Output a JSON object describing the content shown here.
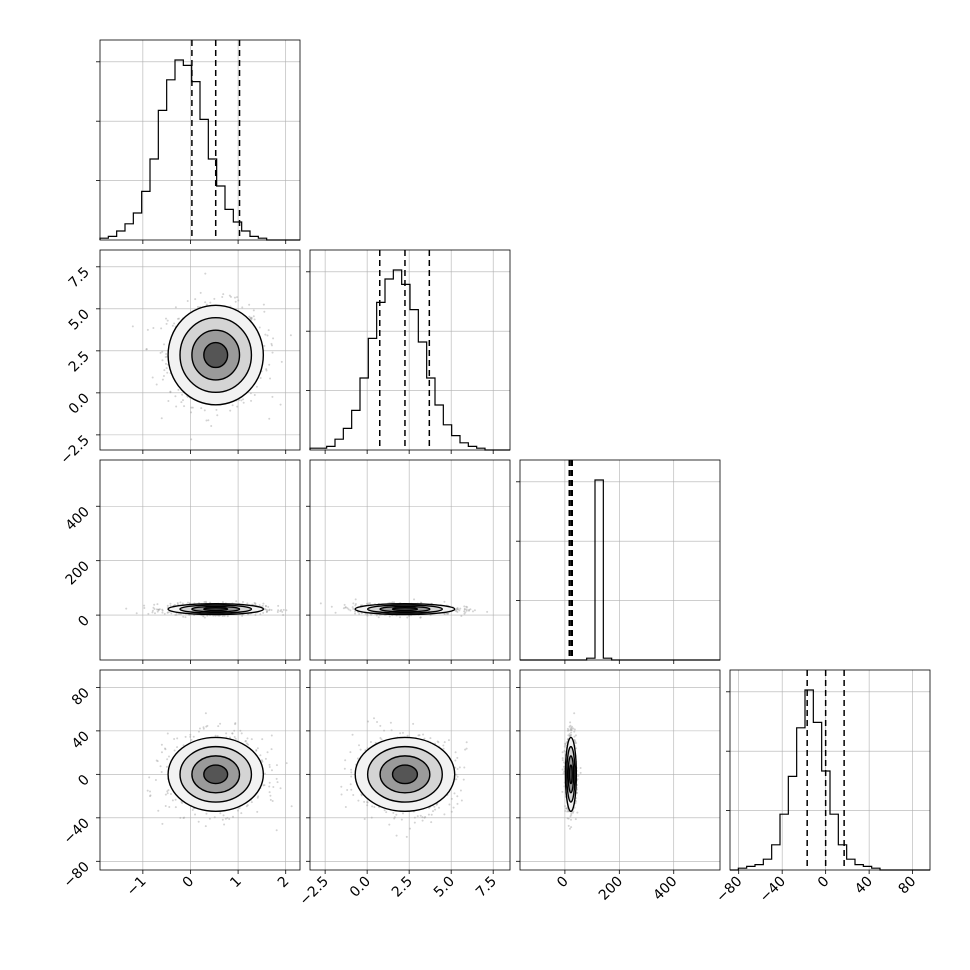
{
  "chart_data": {
    "type": "corner",
    "title": "",
    "parameters": [
      {
        "label": "",
        "range": [
          -1.9,
          2.3
        ],
        "ticks": [
          -1,
          0,
          1,
          2
        ],
        "tick_labels": [
          "−1",
          "0",
          "1",
          "2"
        ],
        "quantiles": [
          0.03,
          0.53,
          1.03
        ]
      },
      {
        "label": "",
        "range": [
          -3.4,
          8.5
        ],
        "ticks": [
          -2.5,
          0.0,
          2.5,
          5.0,
          7.5
        ],
        "tick_labels": [
          "−2.5",
          "0.0",
          "2.5",
          "5.0",
          "7.5"
        ],
        "quantiles": [
          0.75,
          2.25,
          3.7
        ]
      },
      {
        "label": "",
        "range": [
          -165,
          570
        ],
        "ticks": [
          0,
          200,
          400
        ],
        "tick_labels": [
          "0",
          "200",
          "400"
        ],
        "quantiles": [
          16,
          22,
          27
        ]
      },
      {
        "label": "",
        "range": [
          -88,
          96
        ],
        "ticks": [
          -80,
          -40,
          0,
          40,
          80
        ],
        "tick_labels": [
          "−80",
          "−40",
          "0",
          "40",
          "80"
        ],
        "quantiles": [
          -17,
          0,
          17
        ]
      }
    ],
    "histograms": [
      {
        "parameter": 0,
        "bins": 24,
        "counts": [
          0.01,
          0.02,
          0.05,
          0.09,
          0.15,
          0.27,
          0.45,
          0.72,
          0.89,
          1.0,
          0.97,
          0.88,
          0.67,
          0.45,
          0.3,
          0.17,
          0.1,
          0.05,
          0.02,
          0.01,
          0.0,
          0.0,
          0.0,
          0.0
        ]
      },
      {
        "parameter": 1,
        "bins": 24,
        "counts": [
          0.01,
          0.01,
          0.02,
          0.06,
          0.12,
          0.22,
          0.4,
          0.62,
          0.82,
          0.95,
          1.0,
          0.92,
          0.78,
          0.6,
          0.4,
          0.25,
          0.14,
          0.08,
          0.04,
          0.02,
          0.01,
          0.0,
          0.0,
          0.0
        ]
      },
      {
        "parameter": 2,
        "bins": 24,
        "counts": [
          0,
          0,
          0,
          0,
          0,
          0,
          0,
          0,
          0.01,
          1.0,
          0.01,
          0,
          0,
          0,
          0,
          0,
          0,
          0,
          0,
          0,
          0,
          0,
          0,
          0
        ]
      },
      {
        "parameter": 3,
        "bins": 24,
        "counts": [
          0.0,
          0.01,
          0.02,
          0.03,
          0.06,
          0.14,
          0.31,
          0.52,
          0.79,
          1.0,
          0.82,
          0.55,
          0.31,
          0.14,
          0.06,
          0.03,
          0.02,
          0.01,
          0.0,
          0.0,
          0.0,
          0.0,
          0.0,
          0.0
        ]
      }
    ],
    "scatter_panels": [
      {
        "x_param": 0,
        "y_param": 1,
        "mean": [
          0.53,
          2.25
        ],
        "std": [
          0.5,
          1.48
        ]
      },
      {
        "x_param": 0,
        "y_param": 2,
        "mean": [
          0.53,
          22
        ],
        "std": [
          0.5,
          10
        ]
      },
      {
        "x_param": 1,
        "y_param": 2,
        "mean": [
          2.25,
          22
        ],
        "std": [
          1.48,
          10
        ]
      },
      {
        "x_param": 0,
        "y_param": 3,
        "mean": [
          0.53,
          0
        ],
        "std": [
          0.5,
          17
        ]
      },
      {
        "x_param": 1,
        "y_param": 3,
        "mean": [
          2.25,
          0
        ],
        "std": [
          1.48,
          17
        ]
      },
      {
        "x_param": 2,
        "y_param": 3,
        "mean": [
          22,
          0
        ],
        "std": [
          10,
          17
        ]
      }
    ],
    "contour_levels_sigma": [
      0.5,
      1.0,
      1.5,
      2.0
    ],
    "grid": true,
    "colors": {
      "points": "#9e9e9e",
      "contour": "#000000",
      "grid": "#b0b0b0",
      "quantile": "#000000"
    }
  }
}
